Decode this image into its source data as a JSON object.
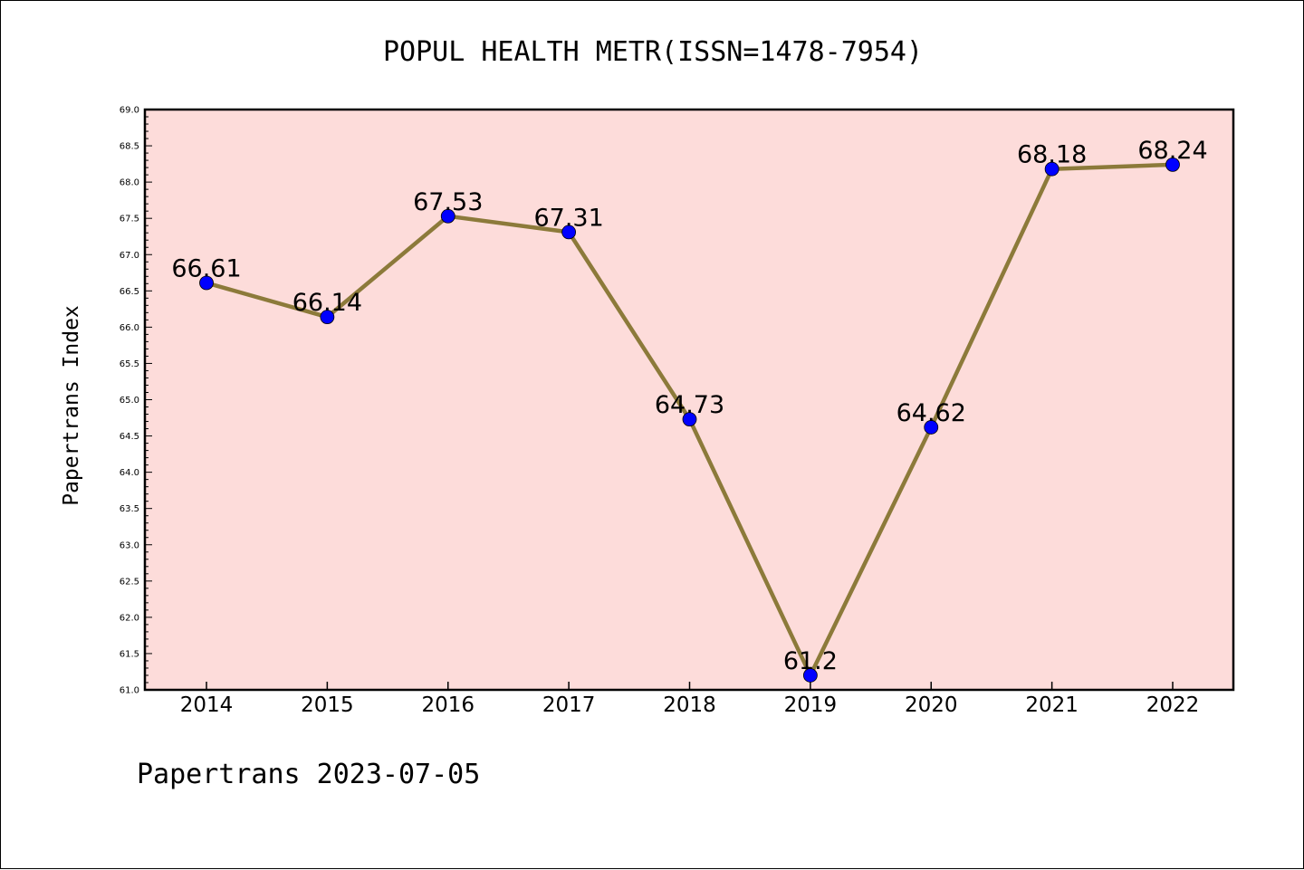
{
  "chart_data": {
    "type": "line",
    "title": "POPUL HEALTH METR(ISSN=1478-7954)",
    "ylabel": "Papertrans Index",
    "xlabel": "",
    "footer": "Papertrans 2023-07-05",
    "categories": [
      "2014",
      "2015",
      "2016",
      "2017",
      "2018",
      "2019",
      "2020",
      "2021",
      "2022"
    ],
    "values": [
      66.61,
      66.14,
      67.53,
      67.31,
      64.73,
      61.2,
      64.62,
      68.18,
      68.24
    ],
    "data_labels": [
      "66.61",
      "66.14",
      "67.53",
      "67.31",
      "64.73",
      "61.2",
      "64.62",
      "68.18",
      "68.24"
    ],
    "ylim": [
      61.0,
      69.0
    ],
    "yticks": [
      "61.0",
      "61.5",
      "62.0",
      "62.5",
      "63.0",
      "63.5",
      "64.0",
      "64.5",
      "65.0",
      "65.5",
      "66.0",
      "66.5",
      "67.0",
      "67.5",
      "68.0",
      "68.5",
      "69.0"
    ],
    "grid": false,
    "legend": "none",
    "colors": {
      "plot_background": "#fddcda",
      "line": "#8c7a3a",
      "marker": "#0000ff",
      "axes": "#000000"
    }
  }
}
